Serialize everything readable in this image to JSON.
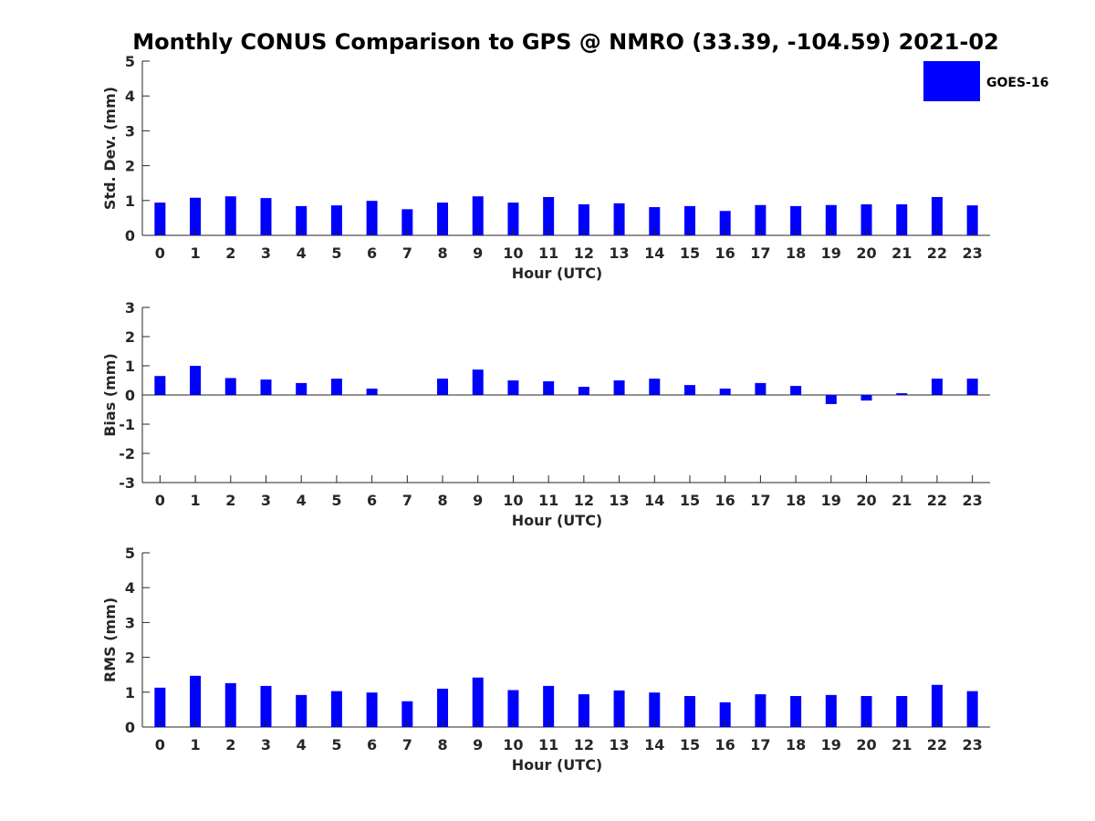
{
  "figure_title": "Monthly CONUS Comparison to GPS @ NMRO (33.39, -104.59) 2021-02",
  "legend": {
    "label": "GOES-16",
    "color": "#0000ff",
    "placement": "top-right"
  },
  "chart_data": [
    {
      "type": "bar",
      "xlabel": "Hour (UTC)",
      "ylabel": "Std. Dev. (mm)",
      "ylim": [
        0,
        5
      ],
      "yticks": [
        0,
        1,
        2,
        3,
        4,
        5
      ],
      "categories": [
        0,
        1,
        2,
        3,
        4,
        5,
        6,
        7,
        8,
        9,
        10,
        11,
        12,
        13,
        14,
        15,
        16,
        17,
        18,
        19,
        20,
        21,
        22,
        23
      ],
      "series": [
        {
          "name": "GOES-16",
          "color": "#0000ff",
          "values": [
            0.94,
            1.08,
            1.12,
            1.07,
            0.84,
            0.86,
            0.99,
            0.75,
            0.94,
            1.12,
            0.94,
            1.1,
            0.89,
            0.92,
            0.81,
            0.84,
            0.7,
            0.87,
            0.84,
            0.87,
            0.89,
            0.89,
            1.1,
            0.86
          ]
        }
      ]
    },
    {
      "type": "bar",
      "xlabel": "Hour (UTC)",
      "ylabel": "Bias (mm)",
      "ylim": [
        -3,
        3
      ],
      "yticks": [
        -3,
        -2,
        -1,
        0,
        1,
        2,
        3
      ],
      "categories": [
        0,
        1,
        2,
        3,
        4,
        5,
        6,
        7,
        8,
        9,
        10,
        11,
        12,
        13,
        14,
        15,
        16,
        17,
        18,
        19,
        20,
        21,
        22,
        23
      ],
      "series": [
        {
          "name": "GOES-16",
          "color": "#0000ff",
          "values": [
            0.65,
            1.0,
            0.58,
            0.53,
            0.41,
            0.56,
            0.22,
            0.0,
            0.56,
            0.87,
            0.5,
            0.47,
            0.28,
            0.5,
            0.56,
            0.34,
            0.22,
            0.41,
            0.31,
            -0.31,
            -0.19,
            0.06,
            0.56,
            0.56
          ]
        }
      ]
    },
    {
      "type": "bar",
      "xlabel": "Hour (UTC)",
      "ylabel": "RMS (mm)",
      "ylim": [
        0,
        5
      ],
      "yticks": [
        0,
        1,
        2,
        3,
        4,
        5
      ],
      "categories": [
        0,
        1,
        2,
        3,
        4,
        5,
        6,
        7,
        8,
        9,
        10,
        11,
        12,
        13,
        14,
        15,
        16,
        17,
        18,
        19,
        20,
        21,
        22,
        23
      ],
      "series": [
        {
          "name": "GOES-16",
          "color": "#0000ff",
          "values": [
            1.13,
            1.47,
            1.26,
            1.18,
            0.92,
            1.03,
            0.99,
            0.74,
            1.1,
            1.42,
            1.06,
            1.18,
            0.94,
            1.05,
            0.99,
            0.89,
            0.71,
            0.94,
            0.89,
            0.92,
            0.89,
            0.89,
            1.21,
            1.03
          ]
        }
      ]
    }
  ]
}
